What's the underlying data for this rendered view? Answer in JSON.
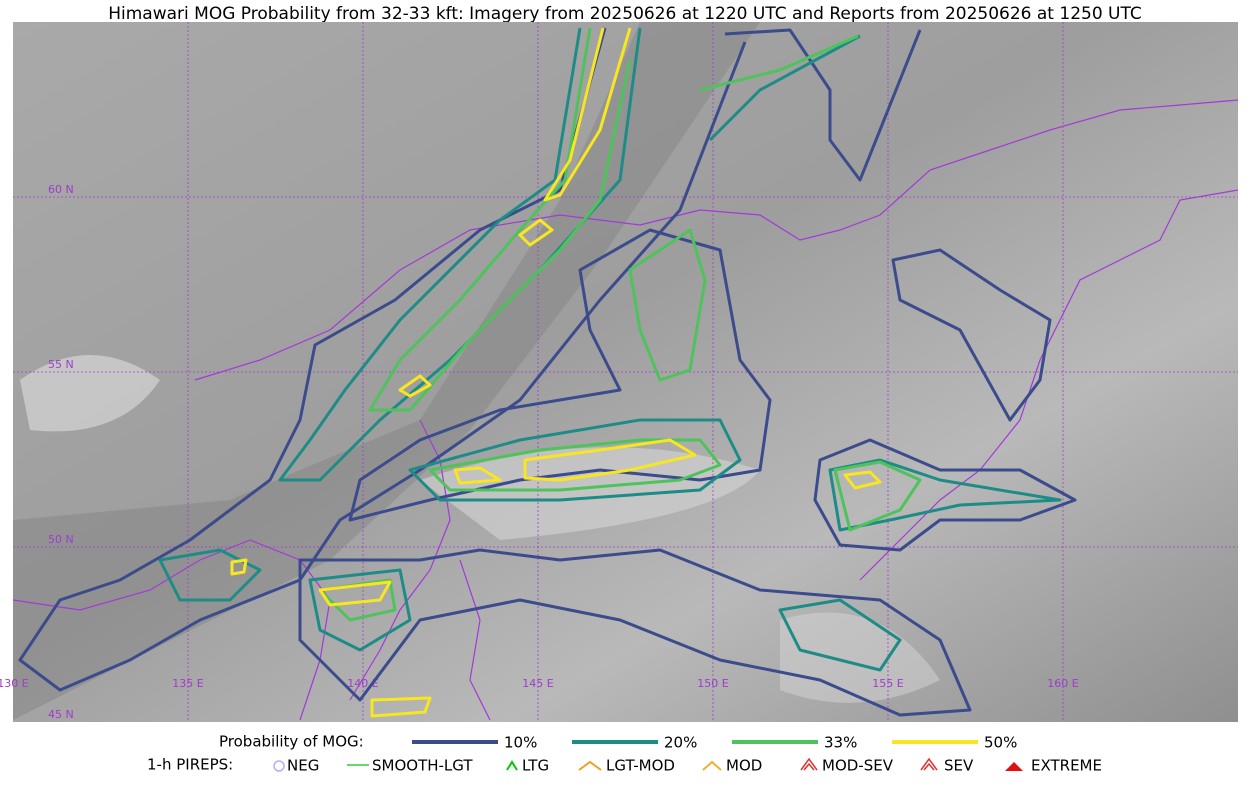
{
  "title": "Himawari MOG Probability from 32-33 kft: Imagery from 20250626 at 1220 UTC and Reports from 20250626 at 1250 UTC",
  "latitudes": [
    "60 N",
    "55 N",
    "50 N",
    "45 N"
  ],
  "longitudes": [
    "130 E",
    "135 E",
    "140 E",
    "145 E",
    "150 E",
    "155 E",
    "160 E"
  ],
  "legend": {
    "title": "Probability of MOG:",
    "levels": [
      {
        "name": "10%",
        "color": "#3b4b8c"
      },
      {
        "name": "20%",
        "color": "#1e8c86"
      },
      {
        "name": "33%",
        "color": "#4ec35c"
      },
      {
        "name": "50%",
        "color": "#f7e620"
      }
    ]
  },
  "pireps": {
    "title": "1-h PIREPS:",
    "items": [
      "NEG",
      "SMOOTH-LGT",
      "LTG",
      "LGT-MOD",
      "MOD",
      "MOD-SEV",
      "SEV",
      "EXTREME"
    ]
  }
}
